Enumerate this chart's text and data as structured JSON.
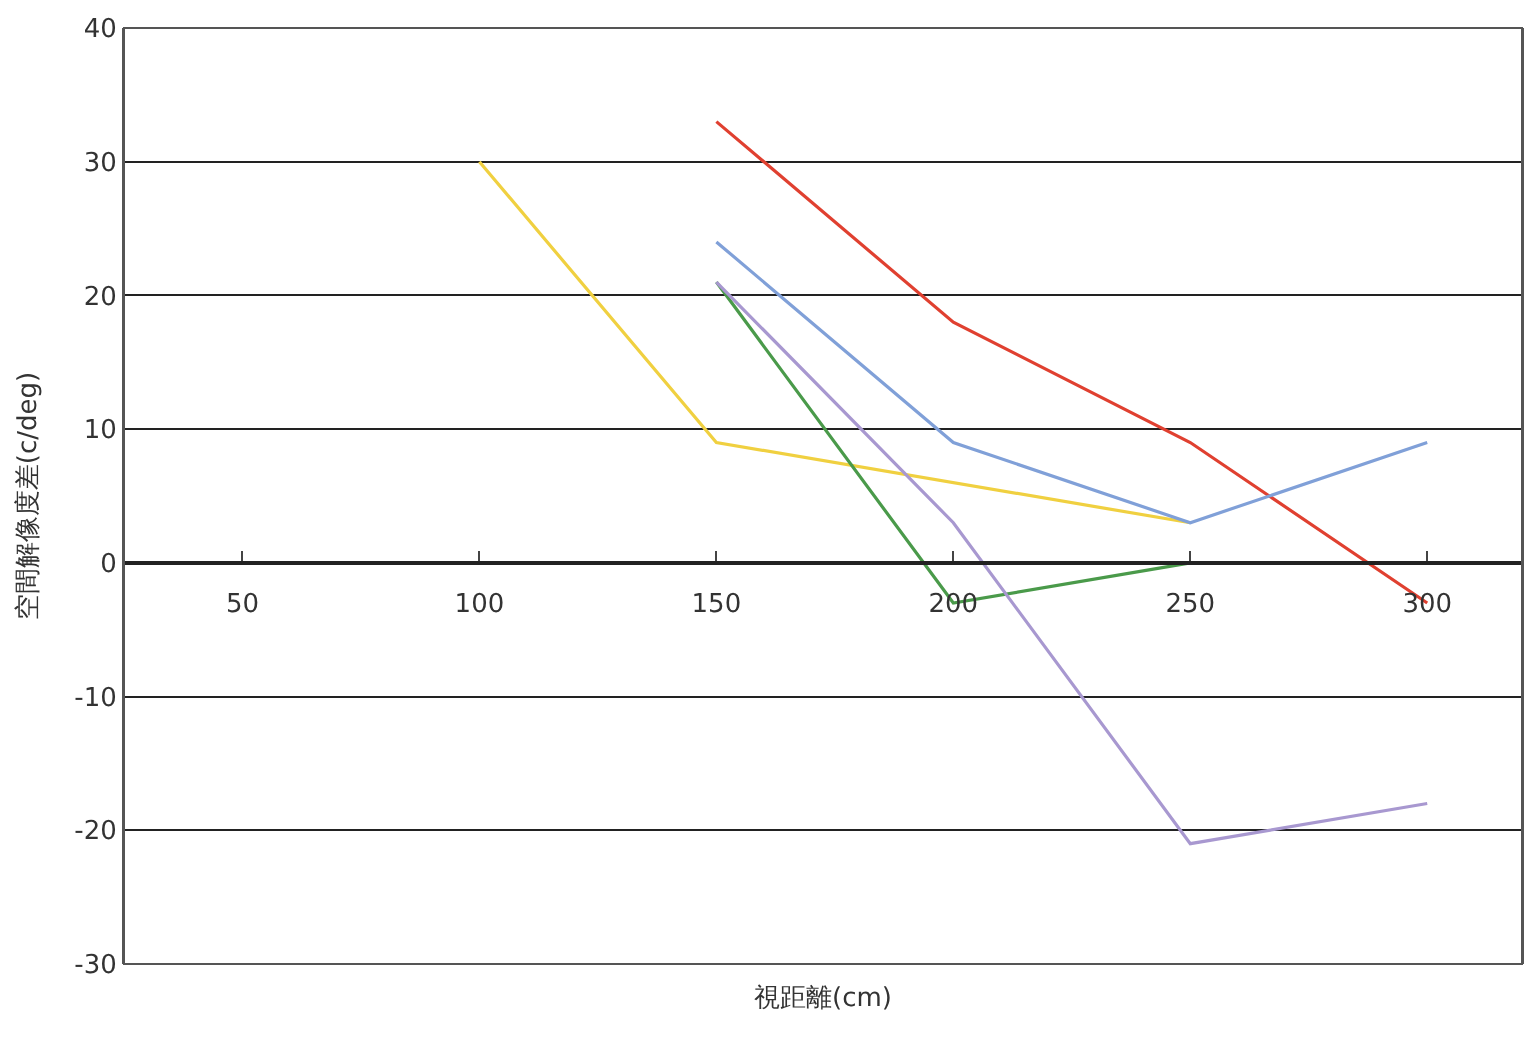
{
  "chart_data": {
    "type": "line",
    "xlabel": "視距離(cm)",
    "ylabel": "空間解像度差(c/deg)",
    "xlim": [
      25,
      320
    ],
    "xticks": [
      50,
      100,
      150,
      200,
      250,
      300
    ],
    "ylim": [
      -30,
      40
    ],
    "yticks": [
      -30,
      -20,
      -10,
      0,
      10,
      20,
      30,
      40
    ],
    "grid": "y",
    "marker": "none",
    "line_style": "solid",
    "series": [
      {
        "color": "#f0d040",
        "x": [
          100,
          150,
          250
        ],
        "values": [
          30,
          9,
          3
        ]
      },
      {
        "color": "#e04030",
        "x": [
          150,
          200,
          250,
          300
        ],
        "values": [
          33,
          18,
          9,
          -3
        ]
      },
      {
        "color": "#80a0d8",
        "x": [
          150,
          200,
          250,
          300
        ],
        "values": [
          24,
          9,
          3,
          9
        ]
      },
      {
        "color": "#4a9a4a",
        "x": [
          150,
          200,
          250
        ],
        "values": [
          21,
          -3,
          0
        ]
      },
      {
        "color": "#a898d0",
        "x": [
          150,
          200,
          250,
          300
        ],
        "values": [
          21,
          3,
          -21,
          -18
        ]
      }
    ]
  }
}
